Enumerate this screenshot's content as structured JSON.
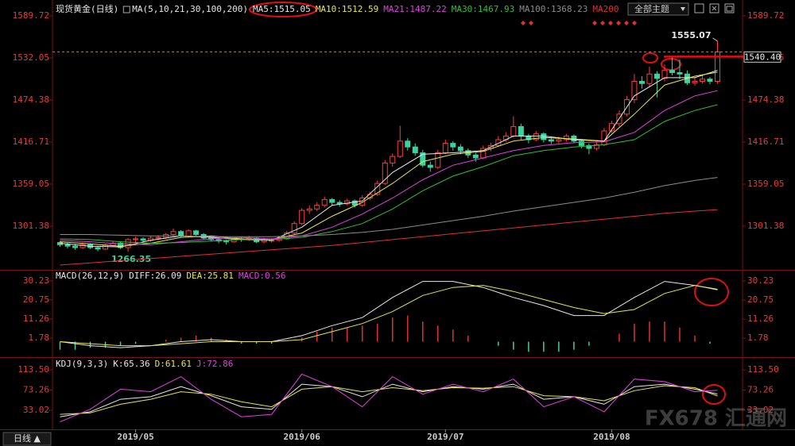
{
  "header": {
    "title": "现货黄金(日线)",
    "theme_button": "全部主题",
    "tab": "日线 ▲"
  },
  "watermark": "FX678 汇通网",
  "chart_data": [
    {
      "type": "candlestick",
      "indicator_title": "MA(5,10,21,30,100,200)",
      "up_color": "#ff3b3b",
      "down_color": "#3ad29f",
      "xlim": [
        -1,
        88
      ],
      "ylim": [
        1243.7,
        1602.8
      ],
      "yticks": [
        1301.38,
        1359.05,
        1416.71,
        1474.38,
        1532.05,
        1589.72
      ],
      "last_price_label": "1540.40",
      "ohlc": [
        [
          1279,
          1281,
          1273,
          1276
        ],
        [
          1276,
          1279,
          1271,
          1274
        ],
        [
          1274,
          1277,
          1269,
          1272
        ],
        [
          1272,
          1279,
          1270,
          1276
        ],
        [
          1276,
          1278,
          1270,
          1272
        ],
        [
          1272,
          1274,
          1267,
          1270
        ],
        [
          1270,
          1277,
          1269,
          1275
        ],
        [
          1275,
          1281,
          1273,
          1278
        ],
        [
          1278,
          1280,
          1270,
          1272
        ],
        [
          1272,
          1285,
          1266.35,
          1283
        ],
        [
          1283,
          1287,
          1279,
          1284
        ],
        [
          1284,
          1286,
          1278,
          1282
        ],
        [
          1282,
          1288,
          1280,
          1285
        ],
        [
          1285,
          1289,
          1282,
          1286
        ],
        [
          1286,
          1292,
          1284,
          1290
        ],
        [
          1290,
          1298,
          1288,
          1294
        ],
        [
          1294,
          1296,
          1286,
          1288
        ],
        [
          1288,
          1297,
          1286,
          1295
        ],
        [
          1295,
          1296,
          1288,
          1290
        ],
        [
          1290,
          1292,
          1283,
          1285
        ],
        [
          1285,
          1287,
          1280,
          1283
        ],
        [
          1283,
          1285,
          1278,
          1281
        ],
        [
          1281,
          1283,
          1276,
          1280
        ],
        [
          1280,
          1286,
          1279,
          1284
        ],
        [
          1284,
          1286,
          1280,
          1283
        ],
        [
          1283,
          1288,
          1281,
          1285
        ],
        [
          1285,
          1286,
          1278,
          1280
        ],
        [
          1280,
          1284,
          1278,
          1282
        ],
        [
          1282,
          1285,
          1279,
          1282
        ],
        [
          1282,
          1287,
          1280,
          1284
        ],
        [
          1284,
          1295,
          1283,
          1292
        ],
        [
          1292,
          1308,
          1290,
          1305
        ],
        [
          1305,
          1326,
          1303,
          1323
        ],
        [
          1323,
          1330,
          1318,
          1325
        ],
        [
          1325,
          1334,
          1322,
          1330
        ],
        [
          1330,
          1342,
          1327,
          1338
        ],
        [
          1338,
          1340,
          1330,
          1334
        ],
        [
          1334,
          1337,
          1328,
          1332
        ],
        [
          1332,
          1339,
          1330,
          1336
        ],
        [
          1336,
          1338,
          1327,
          1330
        ],
        [
          1330,
          1344,
          1328,
          1340
        ],
        [
          1340,
          1349,
          1337,
          1345
        ],
        [
          1345,
          1364,
          1343,
          1360
        ],
        [
          1360,
          1392,
          1358,
          1388
        ],
        [
          1388,
          1401,
          1383,
          1397
        ],
        [
          1397,
          1439,
          1395,
          1418
        ],
        [
          1418,
          1422,
          1405,
          1410
        ],
        [
          1410,
          1415,
          1398,
          1402
        ],
        [
          1402,
          1406,
          1382,
          1385
        ],
        [
          1385,
          1390,
          1376,
          1382
        ],
        [
          1382,
          1406,
          1380,
          1402
        ],
        [
          1402,
          1420,
          1400,
          1415
        ],
        [
          1415,
          1418,
          1405,
          1410
        ],
        [
          1410,
          1414,
          1400,
          1405
        ],
        [
          1405,
          1408,
          1395,
          1399
        ],
        [
          1399,
          1402,
          1390,
          1395
        ],
        [
          1395,
          1412,
          1393,
          1408
        ],
        [
          1408,
          1416,
          1404,
          1412
        ],
        [
          1412,
          1425,
          1410,
          1420
        ],
        [
          1420,
          1430,
          1417,
          1425
        ],
        [
          1425,
          1452,
          1423,
          1438
        ],
        [
          1438,
          1442,
          1420,
          1425
        ],
        [
          1425,
          1428,
          1415,
          1420
        ],
        [
          1420,
          1432,
          1418,
          1428
        ],
        [
          1428,
          1430,
          1416,
          1420
        ],
        [
          1420,
          1424,
          1414,
          1418
        ],
        [
          1418,
          1424,
          1415,
          1420
        ],
        [
          1420,
          1428,
          1417,
          1425
        ],
        [
          1425,
          1427,
          1415,
          1418
        ],
        [
          1418,
          1421,
          1408,
          1412
        ],
        [
          1412,
          1415,
          1400,
          1408
        ],
        [
          1408,
          1418,
          1405,
          1413
        ],
        [
          1413,
          1436,
          1411,
          1432
        ],
        [
          1432,
          1446,
          1429,
          1442
        ],
        [
          1442,
          1460,
          1438,
          1455
        ],
        [
          1455,
          1480,
          1452,
          1475
        ],
        [
          1475,
          1510,
          1470,
          1500
        ],
        [
          1500,
          1507,
          1490,
          1497
        ],
        [
          1497,
          1520,
          1493,
          1510
        ],
        [
          1510,
          1514,
          1478,
          1504
        ],
        [
          1504,
          1523,
          1500,
          1515
        ],
        [
          1515,
          1535,
          1508,
          1512
        ],
        [
          1512,
          1530,
          1503,
          1510
        ],
        [
          1510,
          1515,
          1495,
          1498
        ],
        [
          1498,
          1505,
          1494,
          1500
        ],
        [
          1500,
          1508,
          1497,
          1503
        ],
        [
          1503,
          1506,
          1496,
          1500
        ],
        [
          1500,
          1555.07,
          1497,
          1540.4
        ]
      ],
      "x": [
        0,
        4,
        8,
        12,
        16,
        20,
        24,
        28,
        32,
        36,
        40,
        44,
        48,
        52,
        56,
        60,
        64,
        68,
        72,
        76,
        80,
        84,
        87
      ],
      "series": [
        {
          "name": "MA5:1515.05",
          "color": "#e8e8e8",
          "values": [
            1278,
            1274,
            1273,
            1282,
            1288,
            1286,
            1283,
            1282,
            1300,
            1330,
            1336,
            1375,
            1400,
            1402,
            1405,
            1425,
            1425,
            1420,
            1418,
            1480,
            1505,
            1505,
            1515.05
          ]
        },
        {
          "name": "MA10:1512.59",
          "color": "#e6e64b",
          "values": [
            1280,
            1277,
            1274,
            1278,
            1286,
            1288,
            1284,
            1283,
            1292,
            1315,
            1334,
            1360,
            1390,
            1400,
            1404,
            1418,
            1423,
            1421,
            1418,
            1455,
            1495,
            1507,
            1512.59
          ]
        },
        {
          "name": "MA21:1487.22",
          "color": "#e040e0",
          "values": [
            1282,
            1280,
            1277,
            1276,
            1280,
            1284,
            1286,
            1284,
            1288,
            1300,
            1318,
            1340,
            1365,
            1385,
            1395,
            1405,
            1412,
            1416,
            1417,
            1430,
            1460,
            1480,
            1487.22
          ]
        },
        {
          "name": "MA30:1467.93",
          "color": "#30c030",
          "values": [
            1284,
            1283,
            1280,
            1278,
            1279,
            1281,
            1283,
            1283,
            1286,
            1294,
            1305,
            1325,
            1350,
            1370,
            1383,
            1398,
            1405,
            1410,
            1413,
            1420,
            1445,
            1460,
            1467.93
          ]
        },
        {
          "name": "MA100:1368.23",
          "color": "#8c8c8c",
          "values": [
            1290,
            1290,
            1289,
            1288,
            1288,
            1287,
            1287,
            1287,
            1288,
            1290,
            1293,
            1297,
            1303,
            1309,
            1315,
            1322,
            1328,
            1334,
            1340,
            1348,
            1357,
            1364,
            1368.23
          ]
        },
        {
          "name": "MA200",
          "color": "#e03030",
          "values": [
            1248,
            1251,
            1254,
            1257,
            1260,
            1263,
            1266,
            1269,
            1272,
            1275,
            1279,
            1283,
            1287,
            1291,
            1295,
            1299,
            1303,
            1307,
            1311,
            1315,
            1319,
            1322,
            1324
          ]
        }
      ]
    },
    {
      "type": "macd",
      "title": "MACD(26,12,9)",
      "xlim": [
        -1,
        88
      ],
      "ylim": [
        -6.9,
        34.97
      ],
      "yticks": [
        1.78,
        11.26,
        20.75,
        30.23
      ],
      "x": [
        0,
        4,
        8,
        12,
        16,
        20,
        24,
        28,
        32,
        36,
        40,
        44,
        48,
        52,
        56,
        60,
        64,
        68,
        72,
        76,
        80,
        84,
        87
      ],
      "series": [
        {
          "name": "DIFF:26.09",
          "color": "#e8e8e8",
          "values": [
            0,
            -2,
            -3,
            -2,
            0,
            1,
            0,
            0,
            3,
            8,
            12,
            22,
            30,
            30,
            27,
            22,
            18,
            13,
            13,
            22,
            30,
            28,
            26.09
          ]
        },
        {
          "name": "DEA:25.81",
          "color": "#e6e64b",
          "values": [
            0,
            -1,
            -2,
            -2,
            -1,
            0,
            0,
            0,
            1,
            5,
            9,
            15,
            23,
            27,
            28,
            25,
            21,
            17,
            14,
            16,
            24,
            28,
            25.81
          ]
        }
      ],
      "histogram": {
        "name": "MACD:0.56",
        "color": "#e040e0",
        "up_color": "#e03030",
        "down_color": "#3ad29f",
        "x": [
          0,
          2,
          4,
          6,
          8,
          10,
          12,
          14,
          16,
          18,
          20,
          22,
          24,
          26,
          28,
          30,
          32,
          34,
          36,
          38,
          40,
          42,
          44,
          46,
          48,
          50,
          52,
          54,
          56,
          58,
          60,
          62,
          64,
          66,
          68,
          70,
          72,
          74,
          76,
          78,
          80,
          82,
          84,
          86
        ],
        "values": [
          -4,
          -4,
          -3,
          -3,
          -2,
          -1,
          0,
          1,
          2,
          3,
          2,
          1,
          -1,
          -1,
          -1,
          0,
          2,
          5,
          7,
          7,
          8,
          9,
          12,
          13,
          10,
          8,
          6,
          3,
          0,
          -2,
          -4,
          -5,
          -5,
          -5,
          -4,
          -2,
          0,
          4,
          9,
          10,
          10,
          7,
          3,
          -1
        ]
      }
    },
    {
      "type": "line",
      "title": "KDJ(9,3,3)",
      "xlim": [
        -1,
        88
      ],
      "ylim": [
        -3.3,
        135.6
      ],
      "yticks": [
        33.02,
        73.26,
        {
          "value": 113.5,
          "label": "113.50"
        }
      ],
      "xticks": [
        {
          "value": 10,
          "label": "2019/05"
        },
        {
          "value": 32,
          "label": "2019/06"
        },
        {
          "value": 51,
          "label": "2019/07"
        },
        {
          "value": 73,
          "label": "2019/08"
        }
      ],
      "x": [
        0,
        4,
        8,
        12,
        16,
        20,
        24,
        28,
        32,
        36,
        40,
        44,
        48,
        52,
        56,
        60,
        64,
        68,
        72,
        76,
        80,
        84,
        87
      ],
      "series": [
        {
          "name": "K:65.36",
          "color": "#e8e8e8",
          "values": [
            20,
            30,
            55,
            60,
            80,
            62,
            40,
            35,
            85,
            80,
            60,
            85,
            70,
            80,
            75,
            85,
            55,
            60,
            45,
            80,
            85,
            75,
            65.36
          ]
        },
        {
          "name": "D:61.61",
          "color": "#e6e64b",
          "values": [
            25,
            28,
            45,
            55,
            70,
            65,
            50,
            40,
            75,
            80,
            70,
            78,
            72,
            78,
            77,
            80,
            62,
            60,
            52,
            72,
            82,
            78,
            61.61
          ]
        },
        {
          "name": "J:72.86",
          "color": "#e040e0",
          "values": [
            10,
            35,
            75,
            70,
            100,
            55,
            20,
            25,
            105,
            80,
            40,
            100,
            65,
            85,
            70,
            95,
            40,
            60,
            30,
            95,
            90,
            70,
            72.86
          ]
        }
      ]
    }
  ]
}
